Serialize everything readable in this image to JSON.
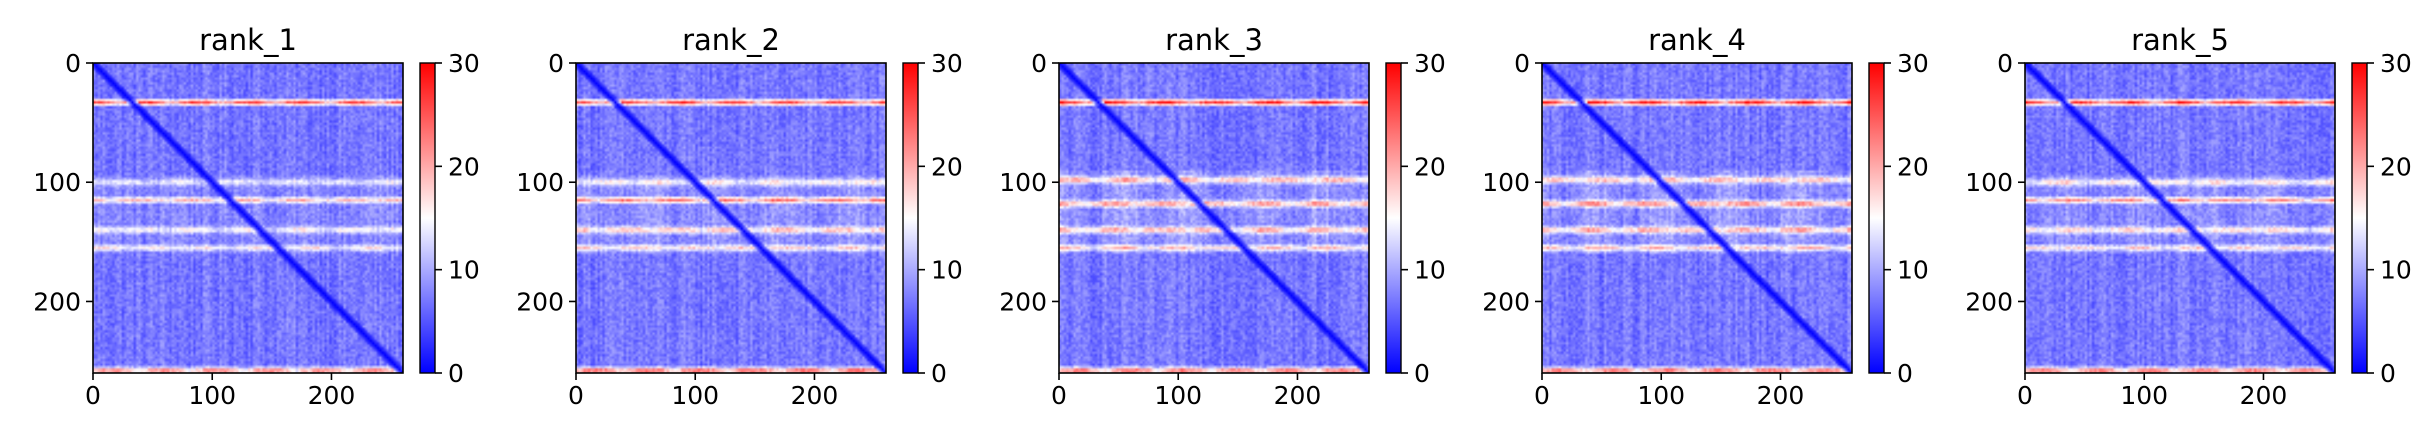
{
  "chart_data": [
    {
      "type": "heatmap",
      "title": "rank_1",
      "x_ticks": [
        0,
        100,
        200
      ],
      "y_ticks": [
        0,
        100,
        200
      ],
      "x_range": [
        0,
        260
      ],
      "y_range": [
        260,
        0
      ],
      "colorbar": {
        "ticks": [
          0,
          10,
          20,
          30
        ],
        "range": [
          0,
          30
        ],
        "colormap": "bwr",
        "low_color": "#0000ff",
        "mid_color": "#ffffff",
        "high_color": "#ff0000"
      },
      "features": {
        "diagonal": true,
        "hot_rows": [
          [
            33,
            0.9
          ],
          [
            100,
            0.35
          ],
          [
            115,
            0.55
          ],
          [
            140,
            0.45
          ],
          [
            155,
            0.4
          ],
          [
            258,
            0.85
          ]
        ],
        "warm_bands": [
          [
            95,
            160,
            0.25
          ]
        ]
      }
    },
    {
      "type": "heatmap",
      "title": "rank_2",
      "x_ticks": [
        0,
        100,
        200
      ],
      "y_ticks": [
        0,
        100,
        200
      ],
      "x_range": [
        0,
        260
      ],
      "y_range": [
        260,
        0
      ],
      "colorbar": {
        "ticks": [
          0,
          10,
          20,
          30
        ],
        "range": [
          0,
          30
        ],
        "colormap": "bwr",
        "low_color": "#0000ff",
        "mid_color": "#ffffff",
        "high_color": "#ff0000"
      },
      "features": {
        "diagonal": true,
        "hot_rows": [
          [
            33,
            0.9
          ],
          [
            100,
            0.45
          ],
          [
            115,
            0.7
          ],
          [
            140,
            0.6
          ],
          [
            155,
            0.45
          ],
          [
            258,
            0.95
          ]
        ],
        "warm_bands": [
          [
            95,
            160,
            0.35
          ]
        ]
      }
    },
    {
      "type": "heatmap",
      "title": "rank_3",
      "x_ticks": [
        0,
        100,
        200
      ],
      "y_ticks": [
        0,
        100,
        200
      ],
      "x_range": [
        0,
        260
      ],
      "y_range": [
        260,
        0
      ],
      "colorbar": {
        "ticks": [
          0,
          10,
          20,
          30
        ],
        "range": [
          0,
          30
        ],
        "colormap": "bwr",
        "low_color": "#0000ff",
        "mid_color": "#ffffff",
        "high_color": "#ff0000"
      },
      "features": {
        "diagonal": true,
        "hot_rows": [
          [
            33,
            1.0
          ],
          [
            98,
            0.65
          ],
          [
            118,
            0.7
          ],
          [
            140,
            0.65
          ],
          [
            155,
            0.5
          ],
          [
            258,
            0.9
          ]
        ],
        "warm_bands": [
          [
            90,
            160,
            0.4
          ]
        ]
      }
    },
    {
      "type": "heatmap",
      "title": "rank_4",
      "x_ticks": [
        0,
        100,
        200
      ],
      "y_ticks": [
        0,
        100,
        200
      ],
      "x_range": [
        0,
        260
      ],
      "y_range": [
        260,
        0
      ],
      "colorbar": {
        "ticks": [
          0,
          10,
          20,
          30
        ],
        "range": [
          0,
          30
        ],
        "colormap": "bwr",
        "low_color": "#0000ff",
        "mid_color": "#ffffff",
        "high_color": "#ff0000"
      },
      "features": {
        "diagonal": true,
        "hot_rows": [
          [
            33,
            1.0
          ],
          [
            98,
            0.6
          ],
          [
            118,
            0.75
          ],
          [
            140,
            0.65
          ],
          [
            155,
            0.5
          ],
          [
            258,
            0.9
          ]
        ],
        "warm_bands": [
          [
            90,
            160,
            0.4
          ]
        ]
      }
    },
    {
      "type": "heatmap",
      "title": "rank_5",
      "x_ticks": [
        0,
        100,
        200
      ],
      "y_ticks": [
        0,
        100,
        200
      ],
      "x_range": [
        0,
        260
      ],
      "y_range": [
        260,
        0
      ],
      "colorbar": {
        "ticks": [
          0,
          10,
          20,
          30
        ],
        "range": [
          0,
          30
        ],
        "colormap": "bwr",
        "low_color": "#0000ff",
        "mid_color": "#ffffff",
        "high_color": "#ff0000"
      },
      "features": {
        "diagonal": true,
        "hot_rows": [
          [
            33,
            0.95
          ],
          [
            100,
            0.5
          ],
          [
            115,
            0.65
          ],
          [
            140,
            0.55
          ],
          [
            155,
            0.45
          ],
          [
            258,
            0.9
          ]
        ],
        "warm_bands": [
          [
            95,
            160,
            0.3
          ]
        ]
      }
    }
  ]
}
